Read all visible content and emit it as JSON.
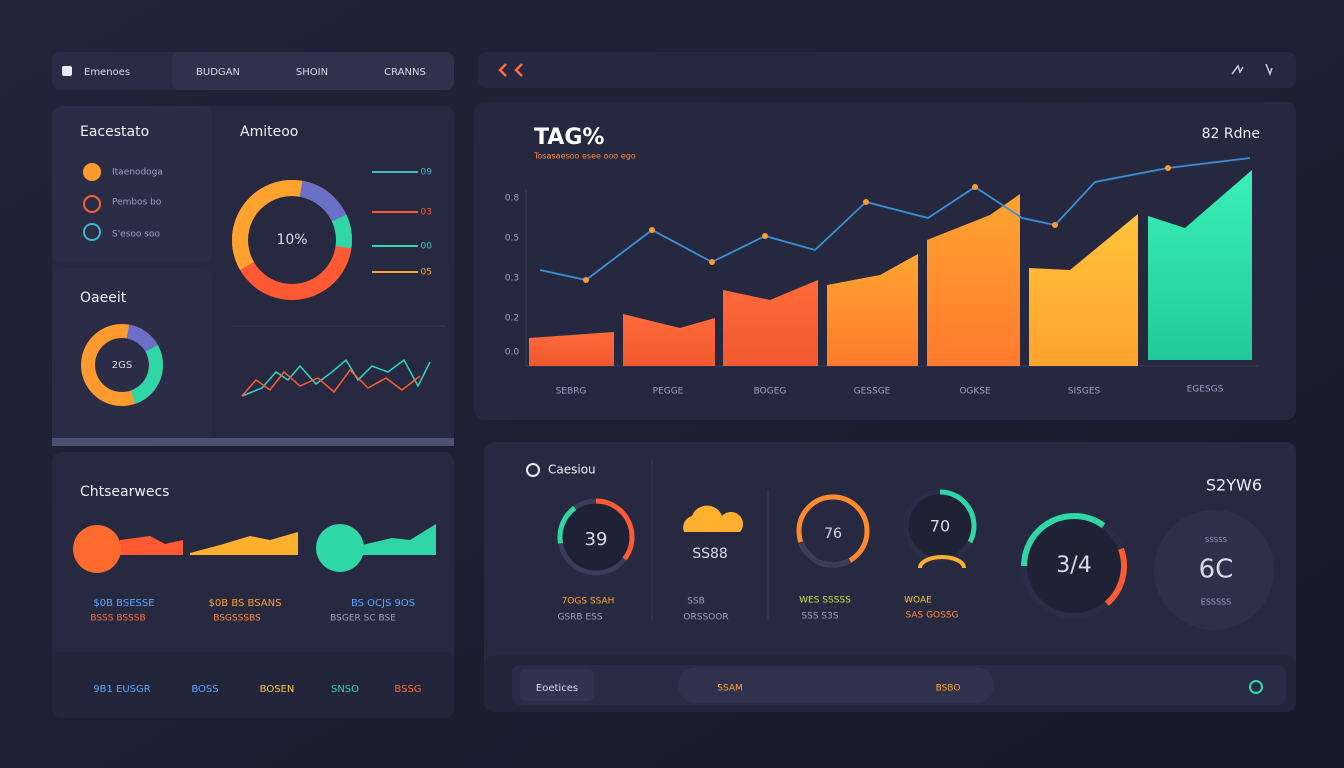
{
  "nav": {
    "brand": "Emenoes",
    "tabs": [
      "BUDGAN",
      "SHOIN",
      "CRANNS"
    ]
  },
  "overview": {
    "title": "Eacestato",
    "items": [
      "Itaenodoga",
      "Pembos bo",
      "S'esoo soo"
    ]
  },
  "analytics": {
    "title": "Amiteoo",
    "center": "10%",
    "legend": [
      "09",
      "03",
      "00",
      "05"
    ]
  },
  "credit": {
    "title": "Oaeeit",
    "center": "2GS"
  },
  "main_chart": {
    "title": "TAG%",
    "subtitle": "Tosasaesoo esee ooo ego",
    "badge": "82 Rdne",
    "y_labels": [
      "0.8",
      "0.5",
      "0.3",
      "0.2",
      "0.0"
    ],
    "x_labels": [
      "SEBRG",
      "PEGGE",
      "BOGEG",
      "GESSGE",
      "OGKSE",
      "SISGES",
      "EGESGS"
    ]
  },
  "categories": {
    "title": "Chtsearwecs",
    "cards": [
      {
        "value": "$0B BSESSE",
        "note": "BSSS BSSSB"
      },
      {
        "value": "$0B BS BSANS",
        "note": "BSGSSSBS"
      },
      {
        "value": "BS OCJS 9OS",
        "note": "BSGER SC BSE"
      }
    ],
    "footer": [
      "9B1 EUSGR",
      "BOSS",
      "BOSEN",
      "SNSO",
      "BSSG"
    ]
  },
  "casino": {
    "title": "Caesiou",
    "badge": "S2YW6",
    "gauges": [
      {
        "value": "39",
        "label": "7OGS SSAH",
        "note": "GSRB ESS"
      },
      {
        "value": "SS88",
        "label": "SSB",
        "note": "ORSSOOR"
      },
      {
        "value": "76",
        "label": "WES SSSSS",
        "note": "SSS S3S"
      },
      {
        "value": "70",
        "label": "WOAE",
        "note": "SAS GOSSG"
      },
      {
        "value": "3/4",
        "label": "",
        "note": ""
      },
      {
        "value": "6C",
        "label": "SSSSS",
        "note": "ESSSSS"
      }
    ],
    "footer": [
      "Eoetices",
      "SSAM",
      "BSBO"
    ]
  }
}
